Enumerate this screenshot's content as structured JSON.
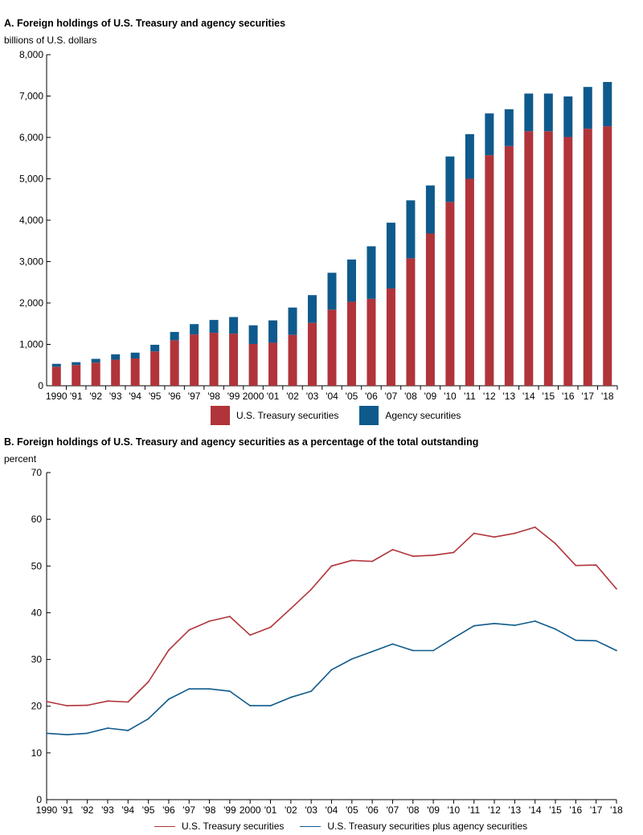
{
  "colors": {
    "treasury": "#b0343a",
    "agency": "#0f5a8c",
    "axis": "#000000"
  },
  "chart_data": [
    {
      "type": "bar",
      "stacked": true,
      "title": "A. Foreign holdings of U.S. Treasury and agency securities",
      "ylabel": "billions of U.S. dollars",
      "xlabel": "",
      "ylim": [
        0,
        8000
      ],
      "yticks": [
        0,
        1000,
        2000,
        3000,
        4000,
        5000,
        6000,
        7000,
        8000
      ],
      "ytick_labels": [
        "0",
        "1,000",
        "2,000",
        "3,000",
        "4,000",
        "5,000",
        "6,000",
        "7,000",
        "8,000"
      ],
      "categories": [
        "1990",
        "'91",
        "'92",
        "'93",
        "'94",
        "'95",
        "'96",
        "'97",
        "'98",
        "'99",
        "2000",
        "'01",
        "'02",
        "'03",
        "'04",
        "'05",
        "'06",
        "'07",
        "'08",
        "'09",
        "'10",
        "'11",
        "'12",
        "'13",
        "'14",
        "'15",
        "'16",
        "'17",
        "'18"
      ],
      "series": [
        {
          "name": "U.S. Treasury securities",
          "color_key": "treasury",
          "values": [
            460,
            500,
            560,
            630,
            660,
            830,
            1100,
            1240,
            1280,
            1260,
            1010,
            1040,
            1230,
            1520,
            1840,
            2030,
            2100,
            2350,
            3080,
            3680,
            4440,
            5000,
            5570,
            5790,
            6150,
            6150,
            6010,
            6210,
            6270
          ]
        },
        {
          "name": "Agency securities",
          "color_key": "agency",
          "values": [
            70,
            70,
            90,
            130,
            140,
            160,
            200,
            250,
            310,
            400,
            450,
            540,
            660,
            670,
            890,
            1020,
            1270,
            1590,
            1400,
            1160,
            1100,
            1080,
            1010,
            890,
            910,
            910,
            980,
            1010,
            1070
          ]
        }
      ],
      "legend": [
        "U.S. Treasury securities",
        "Agency securities"
      ],
      "legend_position": "bottom-center"
    },
    {
      "type": "line",
      "title": "B. Foreign holdings of U.S. Treasury and agency securities as a percentage of the total outstanding",
      "ylabel": "percent",
      "xlabel": "",
      "ylim": [
        0,
        70
      ],
      "yticks": [
        0,
        10,
        20,
        30,
        40,
        50,
        60,
        70
      ],
      "ytick_labels": [
        "0",
        "10",
        "20",
        "30",
        "40",
        "50",
        "60",
        "70"
      ],
      "categories": [
        "1990",
        "'91",
        "'92",
        "'93",
        "'94",
        "'95",
        "'96",
        "'97",
        "'98",
        "'99",
        "2000",
        "'01",
        "'02",
        "'03",
        "'04",
        "'05",
        "'06",
        "'07",
        "'08",
        "'09",
        "'10",
        "'11",
        "'12",
        "'13",
        "'14",
        "'15",
        "'16",
        "'17",
        "'18"
      ],
      "series": [
        {
          "name": "U.S. Treasury securities",
          "color_key": "treasury",
          "values": [
            21.0,
            20.1,
            20.2,
            21.1,
            20.9,
            25.2,
            32.0,
            36.3,
            38.2,
            39.2,
            35.2,
            36.9,
            40.9,
            45.0,
            50.0,
            51.2,
            51.0,
            53.5,
            52.1,
            52.3,
            52.9,
            57.0,
            56.2,
            57.0,
            58.3,
            54.8,
            50.1,
            50.2,
            45.1
          ]
        },
        {
          "name": "U.S. Treasury securities plus agency securities",
          "color_key": "agency",
          "values": [
            14.2,
            13.9,
            14.2,
            15.3,
            14.8,
            17.3,
            21.5,
            23.7,
            23.7,
            23.2,
            20.1,
            20.1,
            21.9,
            23.2,
            27.8,
            30.1,
            31.7,
            33.3,
            31.9,
            31.9,
            34.6,
            37.2,
            37.7,
            37.3,
            38.2,
            36.5,
            34.1,
            34.0,
            31.9
          ]
        }
      ],
      "legend": [
        "U.S. Treasury securities",
        "U.S. Treasury securities plus agency securities"
      ],
      "legend_position": "bottom-center"
    }
  ]
}
